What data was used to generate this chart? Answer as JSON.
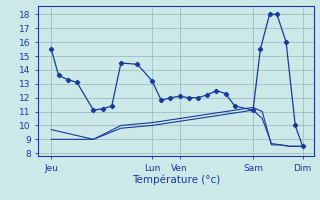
{
  "bg_color": "#cce8e8",
  "grid_color": "#9bbfbf",
  "line_color": "#1a3a9a",
  "title": "Température (°c)",
  "ylabel_vals": [
    8,
    9,
    10,
    11,
    12,
    13,
    14,
    15,
    16,
    17,
    18
  ],
  "ylim": [
    7.8,
    18.6
  ],
  "xlim": [
    -2,
    148
  ],
  "x_ticks_pos": [
    5,
    60,
    75,
    115,
    142
  ],
  "x_tick_labels": [
    "Jeu",
    "Lun",
    "Ven",
    "Sam",
    "Dim"
  ],
  "line1_x": [
    5,
    9,
    14,
    19,
    28,
    33,
    38,
    43,
    52,
    60,
    65,
    70,
    75,
    80,
    85,
    90,
    95,
    100,
    105,
    115,
    119,
    124,
    128,
    133,
    138,
    142
  ],
  "line1_y": [
    15.5,
    13.6,
    13.3,
    13.1,
    11.1,
    11.2,
    11.4,
    14.5,
    14.4,
    13.2,
    11.8,
    12.0,
    12.1,
    12.0,
    12.0,
    12.2,
    12.5,
    12.3,
    11.4,
    11.1,
    15.5,
    18.0,
    18.0,
    16.0,
    10.0,
    8.5
  ],
  "line2_x": [
    5,
    28,
    43,
    60,
    65,
    70,
    75,
    80,
    85,
    90,
    95,
    100,
    105,
    110,
    115,
    120,
    125,
    130,
    135,
    142
  ],
  "line2_y": [
    9.7,
    9.0,
    10.0,
    10.2,
    10.3,
    10.4,
    10.5,
    10.6,
    10.7,
    10.8,
    10.9,
    11.0,
    11.1,
    11.2,
    11.3,
    11.0,
    8.6,
    8.6,
    8.5,
    8.5
  ],
  "line3_x": [
    5,
    28,
    43,
    60,
    65,
    70,
    75,
    80,
    85,
    90,
    95,
    100,
    105,
    110,
    115,
    120,
    125,
    130,
    135,
    142
  ],
  "line3_y": [
    9.0,
    9.0,
    9.8,
    10.0,
    10.1,
    10.2,
    10.3,
    10.4,
    10.5,
    10.6,
    10.7,
    10.8,
    10.9,
    11.0,
    11.1,
    10.5,
    8.7,
    8.6,
    8.5,
    8.5
  ]
}
